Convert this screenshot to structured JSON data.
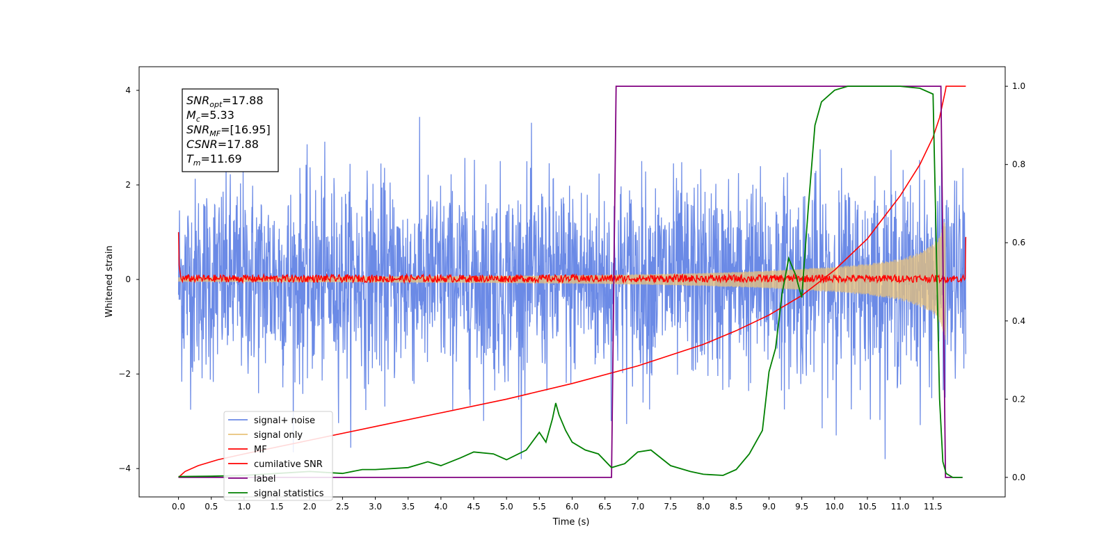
{
  "chart_data": {
    "type": "line",
    "xlabel": "Time (s)",
    "ylabel": "Whitened strain",
    "xlim": [
      -0.6,
      12.6
    ],
    "ylim_left": [
      -4.6,
      4.5
    ],
    "ylim_right": [
      -0.05,
      1.05
    ],
    "x_ticks": [
      "0.0",
      "0.5",
      "1.0",
      "1.5",
      "2.0",
      "2.5",
      "3.0",
      "3.5",
      "4.0",
      "4.5",
      "5.0",
      "5.5",
      "6.0",
      "6.5",
      "7.0",
      "7.5",
      "8.0",
      "8.5",
      "9.0",
      "9.5",
      "10.0",
      "10.5",
      "11.0",
      "11.5"
    ],
    "y_left_ticks": [
      "4",
      "2",
      "0",
      "−2",
      "−4"
    ],
    "y_right_ticks": [
      "1.0",
      "0.8",
      "0.6",
      "0.4",
      "0.2",
      "0.0"
    ],
    "grid": false,
    "legend_position": "lower-left",
    "annotation": {
      "lines": [
        {
          "base": "SNR",
          "sub": "opt",
          "value": "=17.88"
        },
        {
          "base": "M",
          "sub": "c",
          "value": "=5.33"
        },
        {
          "base": "SNR",
          "sub": "MF",
          "value": "=[16.95]"
        },
        {
          "base": "CSNR",
          "sub": "",
          "value": "=17.88"
        },
        {
          "base": "T",
          "sub": "m",
          "value": "=11.69"
        }
      ]
    },
    "series": [
      {
        "name": "signal+ noise",
        "axis": "left",
        "color": "#6b8ae6",
        "kind": "noise",
        "x_range": [
          0.0,
          12.0
        ],
        "amplitude_std": 1.05,
        "approx_range": [
          -3.8,
          4.0
        ]
      },
      {
        "name": "signal only",
        "axis": "left",
        "color": "#e8c27a",
        "kind": "chirp-envelope",
        "x_range": [
          0.0,
          11.69
        ],
        "envelope": {
          "x": [
            0.0,
            2.0,
            4.0,
            6.0,
            7.0,
            8.0,
            9.0,
            10.0,
            10.5,
            11.0,
            11.3,
            11.5,
            11.6,
            11.69
          ],
          "y": [
            0.05,
            0.06,
            0.07,
            0.09,
            0.11,
            0.14,
            0.19,
            0.27,
            0.33,
            0.44,
            0.58,
            0.75,
            0.92,
            1.3
          ]
        }
      },
      {
        "name": "MF",
        "axis": "left",
        "color": "#ff0000",
        "kind": "noise-band",
        "x_range": [
          0.0,
          12.0
        ],
        "center": 0.02,
        "half_width": 0.08
      },
      {
        "name": "cumilative SNR",
        "axis": "right",
        "color": "#ff0000",
        "x": [
          0.0,
          0.1,
          0.3,
          0.6,
          1.0,
          2.0,
          3.0,
          4.0,
          5.0,
          6.0,
          7.0,
          8.0,
          8.5,
          9.0,
          9.5,
          10.0,
          10.5,
          11.0,
          11.3,
          11.5,
          11.6,
          11.69,
          11.7,
          12.0
        ],
        "values": [
          0.0,
          0.015,
          0.03,
          0.045,
          0.06,
          0.095,
          0.13,
          0.165,
          0.2,
          0.24,
          0.285,
          0.34,
          0.375,
          0.415,
          0.465,
          0.53,
          0.61,
          0.72,
          0.8,
          0.87,
          0.92,
          0.99,
          1.0,
          1.0
        ]
      },
      {
        "name": "label",
        "axis": "right",
        "color": "#800080",
        "x": [
          0.0,
          6.6,
          6.67,
          11.62,
          11.69,
          11.95
        ],
        "values": [
          0.0,
          0.0,
          1.0,
          1.0,
          0.0,
          0.0
        ]
      },
      {
        "name": "signal statistics",
        "axis": "right",
        "color": "#008000",
        "x": [
          0.0,
          0.5,
          1.0,
          1.5,
          2.0,
          2.5,
          2.8,
          3.0,
          3.5,
          3.8,
          4.0,
          4.3,
          4.5,
          4.8,
          5.0,
          5.3,
          5.5,
          5.6,
          5.7,
          5.75,
          5.8,
          5.9,
          6.0,
          6.2,
          6.4,
          6.6,
          6.8,
          7.0,
          7.2,
          7.5,
          7.8,
          8.0,
          8.3,
          8.5,
          8.7,
          8.9,
          9.0,
          9.1,
          9.2,
          9.3,
          9.4,
          9.5,
          9.6,
          9.7,
          9.8,
          10.0,
          10.2,
          10.5,
          11.0,
          11.3,
          11.5,
          11.6,
          11.65,
          11.7,
          11.8,
          11.95
        ],
        "values": [
          0.002,
          0.003,
          0.005,
          0.01,
          0.015,
          0.01,
          0.02,
          0.02,
          0.025,
          0.04,
          0.03,
          0.05,
          0.065,
          0.06,
          0.045,
          0.07,
          0.115,
          0.09,
          0.15,
          0.19,
          0.16,
          0.12,
          0.09,
          0.07,
          0.06,
          0.025,
          0.035,
          0.065,
          0.07,
          0.03,
          0.015,
          0.008,
          0.005,
          0.02,
          0.06,
          0.12,
          0.27,
          0.33,
          0.47,
          0.56,
          0.52,
          0.46,
          0.69,
          0.9,
          0.96,
          0.99,
          1.0,
          1.0,
          1.0,
          0.995,
          0.98,
          0.2,
          0.04,
          0.01,
          0.0,
          0.0
        ]
      }
    ]
  }
}
